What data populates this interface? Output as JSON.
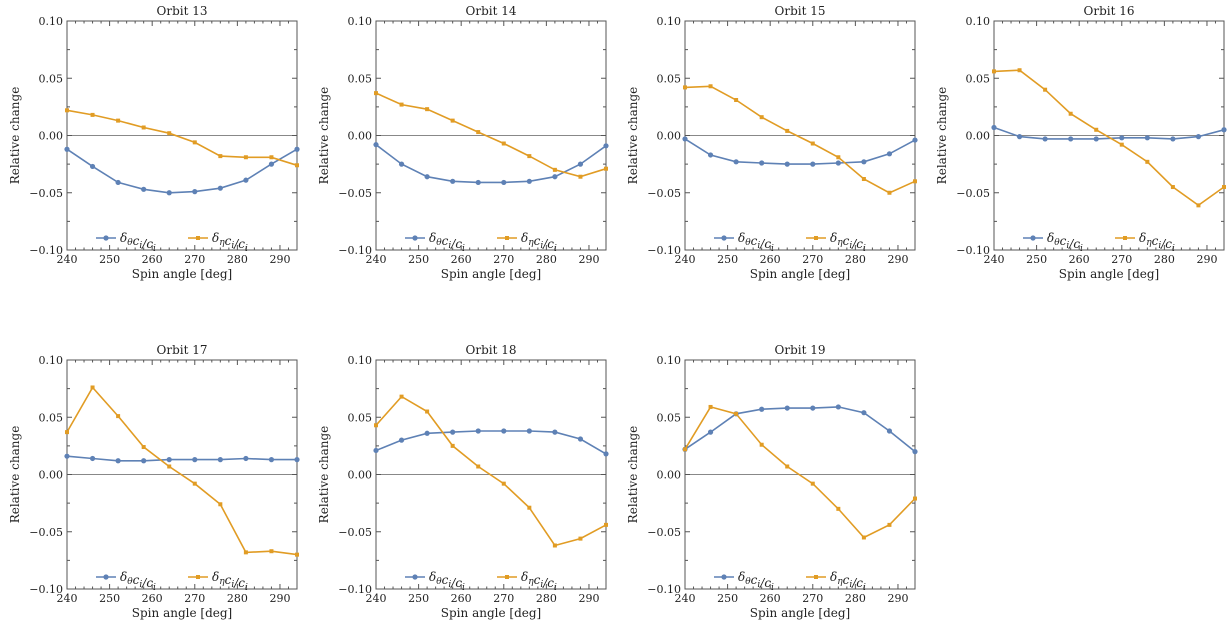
{
  "chart_data": [
    {
      "type": "line",
      "title": "Orbit 13",
      "xlabel": "Spin angle [deg]",
      "ylabel": "Relative change",
      "xlim": [
        240,
        294
      ],
      "ylim": [
        -0.1,
        0.1
      ],
      "xticks": [
        "240",
        "250",
        "260",
        "270",
        "280",
        "290"
      ],
      "yticks": [
        "−0.10",
        "−0.05",
        "0.00",
        "0.05",
        "0.10"
      ],
      "x": [
        240,
        246,
        252,
        258,
        264,
        270,
        276,
        282,
        288,
        294
      ],
      "series": [
        {
          "name": "δθcᵢ/cᵢ",
          "color": "#5E81B5",
          "values": [
            -0.012,
            -0.027,
            -0.041,
            -0.047,
            -0.05,
            -0.049,
            -0.046,
            -0.039,
            -0.025,
            -0.012
          ]
        },
        {
          "name": "δηcᵢ/cᵢ",
          "color": "#E19C24",
          "values": [
            0.022,
            0.018,
            0.013,
            0.007,
            0.002,
            -0.006,
            -0.018,
            -0.019,
            -0.019,
            -0.026
          ]
        }
      ],
      "legend_position": "bottom-center",
      "grid": false
    },
    {
      "type": "line",
      "title": "Orbit 14",
      "xlabel": "Spin angle [deg]",
      "ylabel": "Relative change",
      "xlim": [
        240,
        294
      ],
      "ylim": [
        -0.1,
        0.1
      ],
      "xticks": [
        "240",
        "250",
        "260",
        "270",
        "280",
        "290"
      ],
      "yticks": [
        "−0.10",
        "−0.05",
        "0.00",
        "0.05",
        "0.10"
      ],
      "x": [
        240,
        246,
        252,
        258,
        264,
        270,
        276,
        282,
        288,
        294
      ],
      "series": [
        {
          "name": "δθcᵢ/cᵢ",
          "color": "#5E81B5",
          "values": [
            -0.008,
            -0.025,
            -0.036,
            -0.04,
            -0.041,
            -0.041,
            -0.04,
            -0.036,
            -0.025,
            -0.009
          ]
        },
        {
          "name": "δηcᵢ/cᵢ",
          "color": "#E19C24",
          "values": [
            0.037,
            0.027,
            0.023,
            0.013,
            0.003,
            -0.007,
            -0.018,
            -0.03,
            -0.036,
            -0.029
          ]
        }
      ],
      "legend_position": "bottom-center",
      "grid": false
    },
    {
      "type": "line",
      "title": "Orbit 15",
      "xlabel": "Spin angle [deg]",
      "ylabel": "Relative change",
      "xlim": [
        240,
        294
      ],
      "ylim": [
        -0.1,
        0.1
      ],
      "xticks": [
        "240",
        "250",
        "260",
        "270",
        "280",
        "290"
      ],
      "yticks": [
        "−0.10",
        "−0.05",
        "0.00",
        "0.05",
        "0.10"
      ],
      "x": [
        240,
        246,
        252,
        258,
        264,
        270,
        276,
        282,
        288,
        294
      ],
      "series": [
        {
          "name": "δθcᵢ/cᵢ",
          "color": "#5E81B5",
          "values": [
            -0.003,
            -0.017,
            -0.023,
            -0.024,
            -0.025,
            -0.025,
            -0.024,
            -0.023,
            -0.016,
            -0.004
          ]
        },
        {
          "name": "δηcᵢ/cᵢ",
          "color": "#E19C24",
          "values": [
            0.042,
            0.043,
            0.031,
            0.016,
            0.004,
            -0.007,
            -0.019,
            -0.038,
            -0.05,
            -0.04
          ]
        }
      ],
      "legend_position": "bottom-center",
      "grid": false
    },
    {
      "type": "line",
      "title": "Orbit 16",
      "xlabel": "Spin angle [deg]",
      "ylabel": "Relative change",
      "xlim": [
        240,
        294
      ],
      "ylim": [
        -0.1,
        0.1
      ],
      "xticks": [
        "240",
        "250",
        "260",
        "270",
        "280",
        "290"
      ],
      "yticks": [
        "−0.10",
        "−0.05",
        "0.00",
        "0.05",
        "0.10"
      ],
      "x": [
        240,
        246,
        252,
        258,
        264,
        270,
        276,
        282,
        288,
        294
      ],
      "series": [
        {
          "name": "δθcᵢ/cᵢ",
          "color": "#5E81B5",
          "values": [
            0.007,
            -0.001,
            -0.003,
            -0.003,
            -0.003,
            -0.002,
            -0.002,
            -0.003,
            -0.001,
            0.005
          ]
        },
        {
          "name": "δηcᵢ/cᵢ",
          "color": "#E19C24",
          "values": [
            0.056,
            0.057,
            0.04,
            0.019,
            0.005,
            -0.008,
            -0.023,
            -0.045,
            -0.061,
            -0.045
          ]
        }
      ],
      "legend_position": "bottom-center",
      "grid": false
    },
    {
      "type": "line",
      "title": "Orbit 17",
      "xlabel": "Spin angle [deg]",
      "ylabel": "Relative change",
      "xlim": [
        240,
        294
      ],
      "ylim": [
        -0.1,
        0.1
      ],
      "xticks": [
        "240",
        "250",
        "260",
        "270",
        "280",
        "290"
      ],
      "yticks": [
        "−0.10",
        "−0.05",
        "0.00",
        "0.05",
        "0.10"
      ],
      "x": [
        240,
        246,
        252,
        258,
        264,
        270,
        276,
        282,
        288,
        294
      ],
      "series": [
        {
          "name": "δθcᵢ/cᵢ",
          "color": "#5E81B5",
          "values": [
            0.016,
            0.014,
            0.012,
            0.012,
            0.013,
            0.013,
            0.013,
            0.014,
            0.013,
            0.013
          ]
        },
        {
          "name": "δηcᵢ/cᵢ",
          "color": "#E19C24",
          "values": [
            0.037,
            0.076,
            0.051,
            0.024,
            0.007,
            -0.008,
            -0.026,
            -0.068,
            -0.067,
            -0.07
          ]
        }
      ],
      "legend_position": "bottom-center",
      "grid": false
    },
    {
      "type": "line",
      "title": "Orbit 18",
      "xlabel": "Spin angle [deg]",
      "ylabel": "Relative change",
      "xlim": [
        240,
        294
      ],
      "ylim": [
        -0.1,
        0.1
      ],
      "xticks": [
        "240",
        "250",
        "260",
        "270",
        "280",
        "290"
      ],
      "yticks": [
        "−0.10",
        "−0.05",
        "0.00",
        "0.05",
        "0.10"
      ],
      "x": [
        240,
        246,
        252,
        258,
        264,
        270,
        276,
        282,
        288,
        294
      ],
      "series": [
        {
          "name": "δθcᵢ/cᵢ",
          "color": "#5E81B5",
          "values": [
            0.021,
            0.03,
            0.036,
            0.037,
            0.038,
            0.038,
            0.038,
            0.037,
            0.031,
            0.018
          ]
        },
        {
          "name": "δηcᵢ/cᵢ",
          "color": "#E19C24",
          "values": [
            0.043,
            0.068,
            0.055,
            0.025,
            0.007,
            -0.008,
            -0.029,
            -0.062,
            -0.056,
            -0.044
          ]
        }
      ],
      "legend_position": "bottom-center",
      "grid": false
    },
    {
      "type": "line",
      "title": "Orbit 19",
      "xlabel": "Spin angle [deg]",
      "ylabel": "Relative change",
      "xlim": [
        240,
        294
      ],
      "ylim": [
        -0.1,
        0.1
      ],
      "xticks": [
        "240",
        "250",
        "260",
        "270",
        "280",
        "290"
      ],
      "yticks": [
        "−0.10",
        "−0.05",
        "0.00",
        "0.05",
        "0.10"
      ],
      "x": [
        240,
        246,
        252,
        258,
        264,
        270,
        276,
        282,
        288,
        294
      ],
      "series": [
        {
          "name": "δθcᵢ/cᵢ",
          "color": "#5E81B5",
          "values": [
            0.022,
            0.037,
            0.053,
            0.057,
            0.058,
            0.058,
            0.059,
            0.054,
            0.038,
            0.02
          ]
        },
        {
          "name": "δηcᵢ/cᵢ",
          "color": "#E19C24",
          "values": [
            0.022,
            0.059,
            0.053,
            0.026,
            0.007,
            -0.008,
            -0.03,
            -0.055,
            -0.044,
            -0.021
          ]
        }
      ],
      "legend_position": "bottom-center",
      "grid": false
    }
  ]
}
